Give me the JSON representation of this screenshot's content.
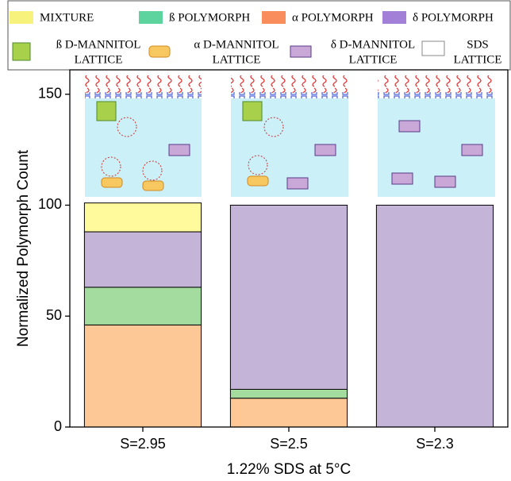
{
  "chart_data": {
    "type": "stacked-bar",
    "y_label": "Normalized Polymorph Count",
    "x_label": "1.22% SDS at 5°C",
    "categories": [
      "S=2.95",
      "S=2.5",
      "S=2.3"
    ],
    "ylim": [
      0,
      161
    ],
    "yticks": [
      0,
      50,
      100,
      150
    ],
    "legend_position": "top",
    "series": [
      {
        "name": "α POLYMORPH",
        "color": "#fdc896",
        "legend_color": "#f98d5c",
        "values": [
          46,
          13,
          0
        ]
      },
      {
        "name": "ß POLYMORPH",
        "color": "#a4dca0",
        "legend_color": "#5dd39e",
        "values": [
          17,
          4,
          0
        ]
      },
      {
        "name": "δ POLYMORPH",
        "color": "#c4b4d8",
        "legend_color": "#a280d8",
        "values": [
          25,
          83,
          100
        ]
      },
      {
        "name": "MIXTURE",
        "color": "#fffa9c",
        "legend_color": "#f7f27c",
        "values": [
          13,
          0,
          0
        ]
      }
    ],
    "legend_order": [
      3,
      1,
      0,
      2
    ],
    "lattice_legend": [
      {
        "lines": [
          "ß D-MANNITOL",
          "LATTICE"
        ]
      },
      {
        "lines": [
          "α D-MANNITOL",
          "LATTICE"
        ]
      },
      {
        "lines": [
          "δ D-MANNITOL",
          "LATTICE"
        ]
      },
      {
        "lines": [
          "SDS",
          "LATTICE"
        ]
      }
    ]
  }
}
